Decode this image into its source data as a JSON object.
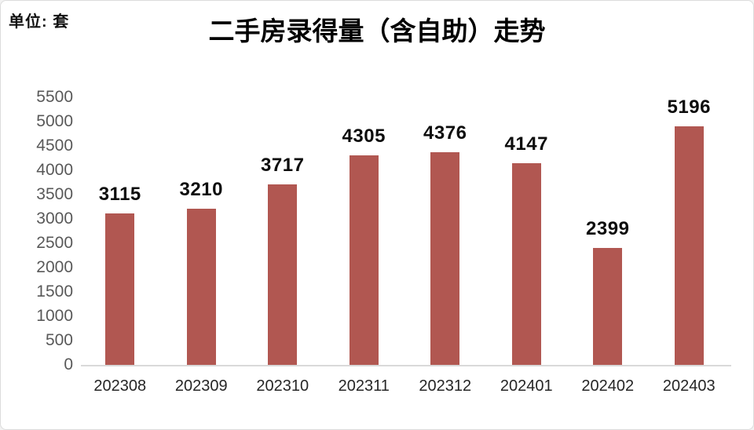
{
  "chart": {
    "unit_label": "单位: 套",
    "colors": {
      "bar": "#b15751",
      "axis_line": "#d9d9d9",
      "tick_label": "#595959",
      "x_label": "#262626",
      "value_label": "#0d0d0d"
    }
  },
  "chart_data": {
    "type": "bar",
    "title": "二手房录得量（含自助）走势",
    "unit": "套",
    "categories": [
      "202308",
      "202309",
      "202310",
      "202311",
      "202312",
      "202401",
      "202402",
      "202403"
    ],
    "values": [
      3115,
      3210,
      3717,
      4305,
      4376,
      4147,
      2399,
      5196
    ],
    "value_labels_shown": true,
    "xlabel": "",
    "ylabel": "",
    "ylim": [
      0,
      5500
    ],
    "yticks": [
      0,
      500,
      1000,
      1500,
      2000,
      2500,
      3000,
      3500,
      4000,
      4500,
      5000,
      5500
    ],
    "grid": false,
    "legend": false,
    "bar_color": "#b15751"
  }
}
